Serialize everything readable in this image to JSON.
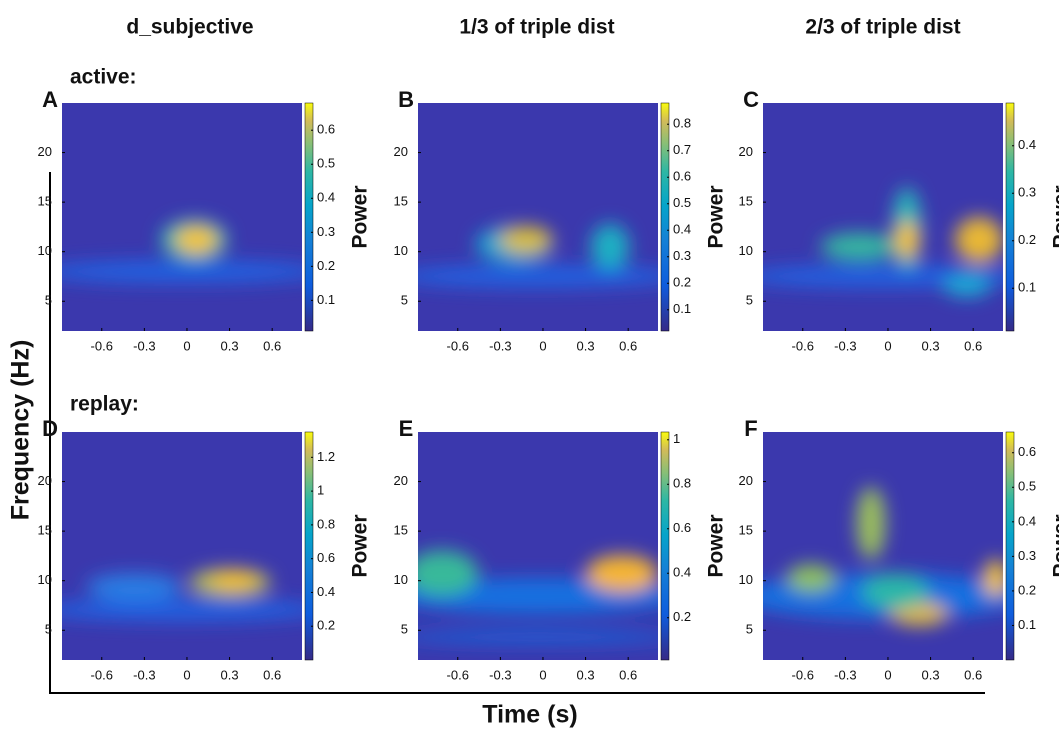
{
  "columns": [
    "d_subjective",
    "1/3 of triple dist",
    "2/3 of triple dist"
  ],
  "rows": [
    "active:",
    "replay:"
  ],
  "y_label": "Frequency (Hz)",
  "x_label": "Time (s)",
  "colorbar_label": "Power",
  "panels": [
    {
      "letter": "A",
      "xlim": [
        -0.88,
        0.81
      ],
      "xticks": [
        -0.6,
        -0.3,
        0,
        0.3,
        0.6
      ],
      "ylim": [
        2,
        25
      ],
      "yticks": [
        5,
        10,
        15,
        20
      ],
      "clim": [
        0.01,
        0.68
      ],
      "cticks": [
        0.1,
        0.2,
        0.3,
        0.4,
        0.5,
        0.6
      ]
    },
    {
      "letter": "B",
      "xlim": [
        -0.88,
        0.81
      ],
      "xticks": [
        -0.6,
        -0.3,
        0,
        0.3,
        0.6
      ],
      "ylim": [
        2,
        25
      ],
      "yticks": [
        5,
        10,
        15,
        20
      ],
      "clim": [
        0.02,
        0.88
      ],
      "cticks": [
        0.1,
        0.2,
        0.3,
        0.4,
        0.5,
        0.6,
        0.7,
        0.8
      ]
    },
    {
      "letter": "C",
      "xlim": [
        -0.88,
        0.81
      ],
      "xticks": [
        -0.6,
        -0.3,
        0,
        0.3,
        0.6
      ],
      "ylim": [
        2,
        25
      ],
      "yticks": [
        5,
        10,
        15,
        20
      ],
      "clim": [
        0.01,
        0.49
      ],
      "cticks": [
        0.1,
        0.2,
        0.3,
        0.4
      ]
    },
    {
      "letter": "D",
      "xlim": [
        -0.88,
        0.81
      ],
      "xticks": [
        -0.6,
        -0.3,
        0,
        0.3,
        0.6
      ],
      "ylim": [
        2,
        25
      ],
      "yticks": [
        5,
        10,
        15,
        20
      ],
      "clim": [
        0,
        1.35
      ],
      "cticks": [
        0.2,
        0.4,
        0.6,
        0.8,
        1,
        1.2
      ]
    },
    {
      "letter": "E",
      "xlim": [
        -0.88,
        0.81
      ],
      "xticks": [
        -0.6,
        -0.3,
        0,
        0.3,
        0.6
      ],
      "ylim": [
        2,
        25
      ],
      "yticks": [
        5,
        10,
        15,
        20
      ],
      "clim": [
        0.01,
        1.035
      ],
      "cticks": [
        0.2,
        0.4,
        0.6,
        0.8,
        1
      ]
    },
    {
      "letter": "F",
      "xlim": [
        -0.88,
        0.81
      ],
      "xticks": [
        -0.6,
        -0.3,
        0,
        0.3,
        0.6
      ],
      "ylim": [
        2,
        25
      ],
      "yticks": [
        5,
        10,
        15,
        20
      ],
      "clim": [
        0,
        0.66
      ],
      "cticks": [
        0.1,
        0.2,
        0.3,
        0.4,
        0.5,
        0.6
      ]
    }
  ]
}
